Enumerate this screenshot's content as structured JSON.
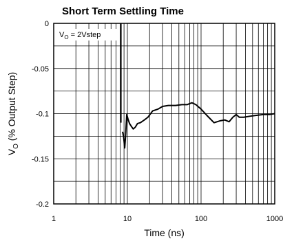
{
  "chart_data": {
    "type": "line",
    "title": "Short Term Settling Time",
    "xlabel": "Time (ns)",
    "ylabel_main": "V",
    "ylabel_sub": "O",
    "ylabel_rest": " (% Output Step)",
    "xscale": "log",
    "xlim": [
      1,
      1000
    ],
    "ylim": [
      -0.2,
      0
    ],
    "grid": true,
    "x_ticks": [
      1,
      10,
      100,
      1000
    ],
    "x_tick_labels": [
      "1",
      "10",
      "100",
      "1000"
    ],
    "y_ticks": [
      0,
      -0.05,
      -0.1,
      -0.15,
      -0.2
    ],
    "y_tick_labels": [
      "0",
      "-0.05",
      "-0.1",
      "-0.15",
      "-0.2"
    ],
    "annotation": {
      "prefix": "V",
      "sub": "O",
      "suffix": " = 2Vstep"
    },
    "series": [
      {
        "color": "#000000",
        "x": [
          8.6,
          8.9,
          9.2,
          9.5,
          9.8,
          10.2,
          10.7,
          11.3,
          12.0,
          12.8,
          13.7,
          15,
          17,
          19,
          22,
          26,
          30,
          36,
          45,
          55,
          65,
          75,
          85,
          100,
          120,
          150,
          180,
          210,
          240,
          270,
          300,
          330,
          380,
          450,
          550,
          700,
          850,
          1000
        ],
        "y": [
          -0.12,
          -0.126,
          -0.138,
          -0.122,
          -0.101,
          -0.106,
          -0.111,
          -0.114,
          -0.117,
          -0.115,
          -0.111,
          -0.11,
          -0.107,
          -0.104,
          -0.097,
          -0.095,
          -0.092,
          -0.091,
          -0.091,
          -0.09,
          -0.09,
          -0.088,
          -0.09,
          -0.095,
          -0.102,
          -0.11,
          -0.108,
          -0.107,
          -0.109,
          -0.104,
          -0.101,
          -0.104,
          -0.104,
          -0.103,
          -0.102,
          -0.101,
          -0.101,
          -0.1
        ]
      }
    ],
    "spike": {
      "x": 8.2,
      "y_top": 0,
      "y_bottom": -0.11
    }
  }
}
